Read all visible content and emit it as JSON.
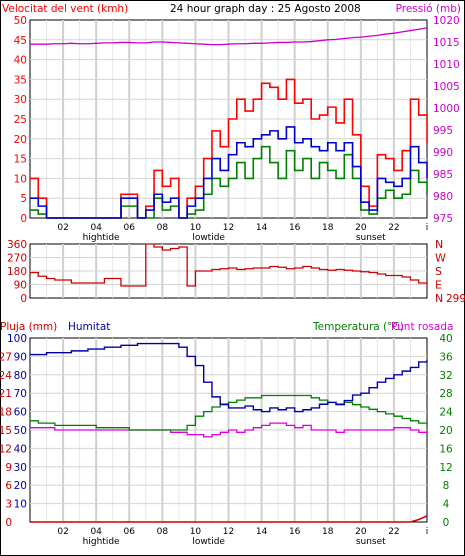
{
  "header": {
    "wind_title": "Velocitat del vent (kmh)",
    "date_title": "24 hour graph day : 25 Agosto 2008",
    "pressure_title": "Pressió (mb)"
  },
  "bottom_labels": {
    "rain": "Pluja (mm)",
    "humidity": "Humitat",
    "temperature": "Temperatura (°C)",
    "dewpoint": "Punt rosada"
  },
  "x_axis": {
    "hour_ticks": [
      "02",
      "04",
      "06",
      "08",
      "10",
      "12",
      "14",
      "16",
      "18",
      "20",
      "22"
    ],
    "events": [
      "hightide",
      "lowtide",
      "sunset"
    ],
    "end_tick": "i"
  },
  "direction": {
    "left_ticks": [
      "360",
      "270",
      "180",
      "90",
      "0"
    ],
    "compass": [
      "N",
      "W",
      "S",
      "E",
      "N"
    ],
    "current_value": "299"
  },
  "colors": {
    "wind_gust": "#ff0000",
    "wind_avg": "#0000cc",
    "wind_min": "#008000",
    "pressure": "#cc00cc",
    "direction": "#cc0000",
    "humidity": "#0000aa",
    "temperature": "#008000",
    "dewpoint": "#dd00dd",
    "rain": "#cc0000"
  },
  "chart_data": [
    {
      "type": "line",
      "title": "",
      "ylabel": "Velocitat del vent (kmh)",
      "y2label": "Pressió (mb)",
      "ylim": [
        0,
        50
      ],
      "y2lim": [
        975,
        1020
      ],
      "yticks": [
        0,
        5,
        10,
        15,
        20,
        25,
        30,
        35,
        40,
        45,
        50
      ],
      "y2ticks": [
        975,
        980,
        985,
        990,
        995,
        1000,
        1005,
        1010,
        1015,
        1020
      ],
      "x": [
        0,
        0.5,
        1,
        1.5,
        2,
        2.5,
        3,
        3.5,
        4,
        4.5,
        5,
        5.5,
        6,
        6.5,
        7,
        7.5,
        8,
        8.5,
        9,
        9.5,
        10,
        10.5,
        11,
        11.5,
        12,
        12.5,
        13,
        13.5,
        14,
        14.5,
        15,
        15.5,
        16,
        16.5,
        17,
        17.5,
        18,
        18.5,
        19,
        19.5,
        20,
        20.5,
        21,
        21.5,
        22,
        22.5,
        23,
        23.5,
        24
      ],
      "series": [
        {
          "name": "Gust",
          "axis": "left",
          "values": [
            10,
            5,
            0,
            0,
            0,
            0,
            0,
            0,
            0,
            0,
            0,
            6,
            6,
            0,
            3,
            12,
            8,
            10,
            0,
            5,
            8,
            15,
            22,
            18,
            25,
            30,
            27,
            30,
            34,
            33,
            30,
            35,
            29,
            30,
            25,
            26,
            28,
            24,
            30,
            21,
            8,
            3,
            16,
            15,
            12,
            17,
            30,
            26,
            19
          ]
        },
        {
          "name": "Average",
          "axis": "left",
          "values": [
            5,
            3,
            0,
            0,
            0,
            0,
            0,
            0,
            0,
            0,
            0,
            5,
            5,
            0,
            2,
            6,
            4,
            5,
            0,
            3,
            5,
            10,
            15,
            12,
            16,
            19,
            18,
            20,
            21,
            22,
            20,
            23,
            19,
            20,
            18,
            17,
            19,
            17,
            19,
            13,
            4,
            2,
            10,
            9,
            8,
            10,
            18,
            14,
            10
          ]
        },
        {
          "name": "Minimum",
          "axis": "left",
          "values": [
            2,
            1,
            0,
            0,
            0,
            0,
            0,
            0,
            0,
            0,
            0,
            3,
            3,
            0,
            0,
            5,
            2,
            3,
            0,
            1,
            2,
            6,
            10,
            8,
            10,
            14,
            10,
            15,
            18,
            14,
            10,
            17,
            12,
            15,
            10,
            14,
            12,
            10,
            16,
            10,
            2,
            1,
            5,
            7,
            5,
            6,
            12,
            9,
            6
          ]
        },
        {
          "name": "Pressure",
          "axis": "right",
          "values": [
            1014.5,
            1014.5,
            1014.5,
            1014.6,
            1014.6,
            1014.7,
            1014.6,
            1014.6,
            1014.7,
            1014.8,
            1014.8,
            1014.9,
            1014.9,
            1014.8,
            1014.8,
            1015.0,
            1015.0,
            1014.9,
            1014.8,
            1014.7,
            1014.6,
            1014.5,
            1014.4,
            1014.4,
            1014.5,
            1014.6,
            1014.6,
            1014.7,
            1014.7,
            1014.8,
            1014.9,
            1014.9,
            1015.0,
            1015.0,
            1015.1,
            1015.3,
            1015.5,
            1015.6,
            1015.8,
            1016.0,
            1016.1,
            1016.3,
            1016.5,
            1016.8,
            1017.0,
            1017.3,
            1017.6,
            1017.9,
            1018.2
          ]
        }
      ]
    },
    {
      "type": "line",
      "title": "",
      "ylabel": "",
      "ylim": [
        0,
        360
      ],
      "yticks": [
        0,
        90,
        180,
        270,
        360
      ],
      "x": [
        0,
        0.5,
        1,
        1.5,
        2,
        2.5,
        3,
        3.5,
        4,
        4.5,
        5,
        5.5,
        6,
        6.5,
        7,
        7.5,
        8,
        8.5,
        9,
        9.5,
        10,
        10.5,
        11,
        11.5,
        12,
        12.5,
        13,
        13.5,
        14,
        14.5,
        15,
        15.5,
        16,
        16.5,
        17,
        17.5,
        18,
        18.5,
        19,
        19.5,
        20,
        20.5,
        21,
        21.5,
        22,
        22.5,
        23,
        23.5,
        24
      ],
      "series": [
        {
          "name": "Direction",
          "values": [
            170,
            145,
            130,
            120,
            120,
            100,
            100,
            100,
            100,
            130,
            130,
            80,
            80,
            80,
            360,
            340,
            320,
            330,
            340,
            80,
            180,
            180,
            190,
            195,
            200,
            190,
            195,
            200,
            200,
            210,
            205,
            195,
            200,
            210,
            200,
            190,
            185,
            190,
            185,
            180,
            175,
            170,
            160,
            150,
            150,
            140,
            120,
            100,
            75
          ]
        }
      ]
    },
    {
      "type": "line",
      "title": "",
      "ylabel": "Pluja (mm)",
      "y2label": "Temperatura (°C)",
      "ylim": [
        0,
        30
      ],
      "y2lim": [
        0,
        40
      ],
      "yticks": [
        0,
        3,
        6,
        9,
        12,
        15,
        18,
        21,
        24,
        27,
        30
      ],
      "humidity_ticks": [
        0,
        10,
        20,
        30,
        40,
        50,
        60,
        70,
        80,
        90,
        100
      ],
      "y2ticks": [
        0,
        4,
        8,
        12,
        16,
        20,
        24,
        28,
        32,
        36,
        40
      ],
      "x": [
        0,
        0.5,
        1,
        1.5,
        2,
        2.5,
        3,
        3.5,
        4,
        4.5,
        5,
        5.5,
        6,
        6.5,
        7,
        7.5,
        8,
        8.5,
        9,
        9.5,
        10,
        10.5,
        11,
        11.5,
        12,
        12.5,
        13,
        13.5,
        14,
        14.5,
        15,
        15.5,
        16,
        16.5,
        17,
        17.5,
        18,
        18.5,
        19,
        19.5,
        20,
        20.5,
        21,
        21.5,
        22,
        22.5,
        23,
        23.5,
        24
      ],
      "series": [
        {
          "name": "Humitat",
          "axis": "humidity",
          "values": [
            91,
            91,
            92,
            92,
            92,
            93,
            93,
            94,
            94,
            95,
            95,
            96,
            96,
            97,
            97,
            97,
            97,
            97,
            95,
            90,
            85,
            76,
            68,
            64,
            62,
            62,
            63,
            61,
            60,
            62,
            61,
            62,
            60,
            61,
            62,
            64,
            65,
            64,
            66,
            69,
            70,
            73,
            76,
            78,
            80,
            82,
            84,
            87,
            88
          ]
        },
        {
          "name": "Temperatura",
          "axis": "right",
          "values": [
            22,
            21.5,
            21.5,
            21,
            21,
            21,
            21,
            21,
            20.5,
            20.5,
            20.5,
            20.5,
            20,
            20,
            20,
            20,
            20,
            20,
            20,
            21,
            23,
            24,
            25,
            25.5,
            26,
            26.5,
            27,
            27,
            27.5,
            27.5,
            27.5,
            27.5,
            27.5,
            27.5,
            27,
            26.5,
            26,
            25.5,
            26,
            25.5,
            25,
            24.5,
            24,
            23.5,
            23,
            22.5,
            22,
            21.5,
            21.5
          ]
        },
        {
          "name": "Punt rosada",
          "axis": "right",
          "values": [
            20.5,
            20.5,
            20.5,
            20,
            20,
            20,
            20,
            20,
            20,
            20,
            20,
            20,
            20,
            20,
            20,
            20,
            20,
            19.5,
            19.5,
            19,
            19,
            18.5,
            19,
            19.5,
            20,
            19.5,
            20,
            20.5,
            21,
            21.5,
            21.5,
            21,
            20.5,
            21,
            20,
            20,
            20,
            19.5,
            20,
            20,
            20,
            20,
            20,
            20,
            20.5,
            20.5,
            20,
            19.5,
            19.5
          ]
        },
        {
          "name": "Pluja",
          "axis": "left",
          "values": [
            0,
            0,
            0,
            0,
            0,
            0,
            0,
            0,
            0,
            0,
            0,
            0,
            0,
            0,
            0,
            0,
            0,
            0,
            0,
            0,
            0,
            0,
            0,
            0,
            0,
            0,
            0,
            0,
            0,
            0,
            0,
            0,
            0,
            0,
            0,
            0,
            0,
            0,
            0,
            0,
            0,
            0,
            0,
            0,
            0,
            0,
            0,
            0.4,
            1
          ]
        }
      ]
    }
  ]
}
